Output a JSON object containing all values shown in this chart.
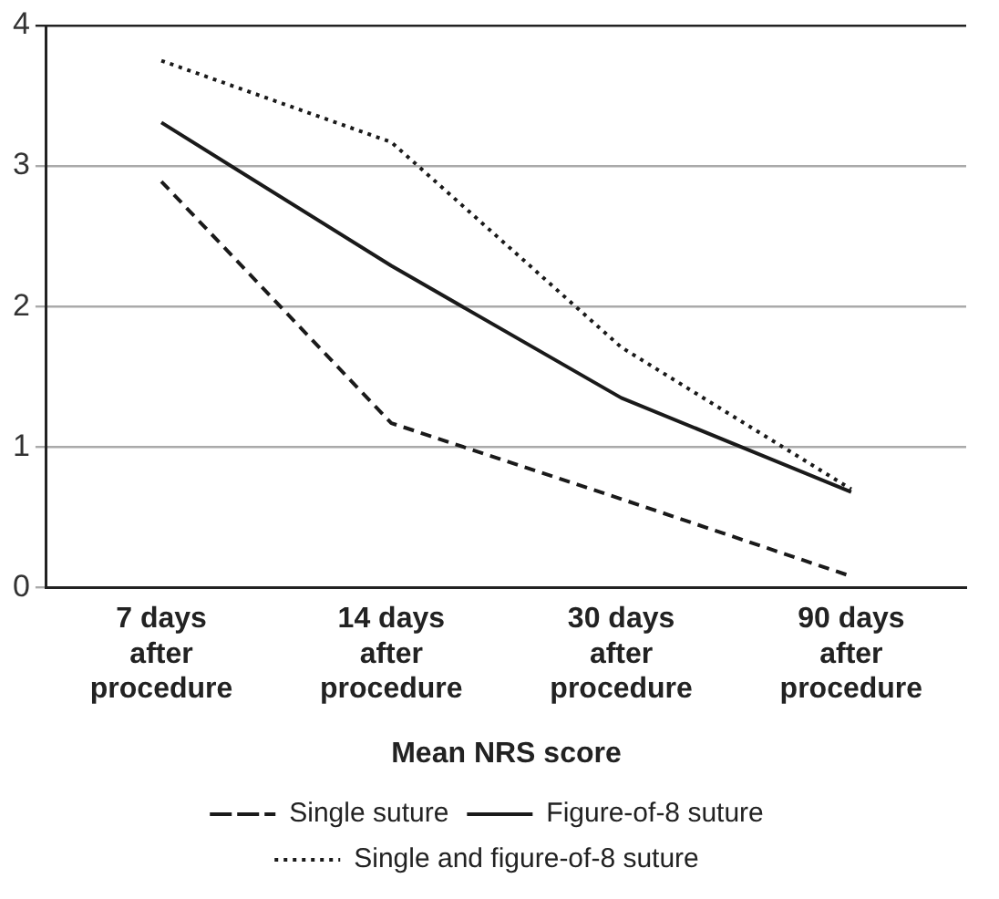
{
  "chart_data": {
    "type": "line",
    "xlabel": "Mean NRS score",
    "categories": [
      "7 days\nafter\nprocedure",
      "14 days\nafter\nprocedure",
      "30 days\nafter\nprocedure",
      "90 days\nafter\nprocedure"
    ],
    "series": [
      {
        "name": "Single suture",
        "color": "#1a1a1a",
        "line_style": "dashed",
        "values": [
          2.89,
          1.17,
          0.63,
          0.08
        ]
      },
      {
        "name": "Figure-of-8 suture",
        "color": "#1a1a1a",
        "line_style": "solid",
        "values": [
          3.31,
          2.29,
          1.35,
          0.68
        ]
      },
      {
        "name": "Single and figure-of-8 suture",
        "color": "#1a1a1a",
        "line_style": "dotted",
        "values": [
          3.75,
          3.17,
          1.71,
          0.7
        ]
      }
    ],
    "ylim": [
      0,
      4
    ],
    "yticks": [
      0,
      1,
      2,
      3,
      4
    ],
    "grid": "y",
    "legend": "bottom",
    "marker": "none"
  }
}
